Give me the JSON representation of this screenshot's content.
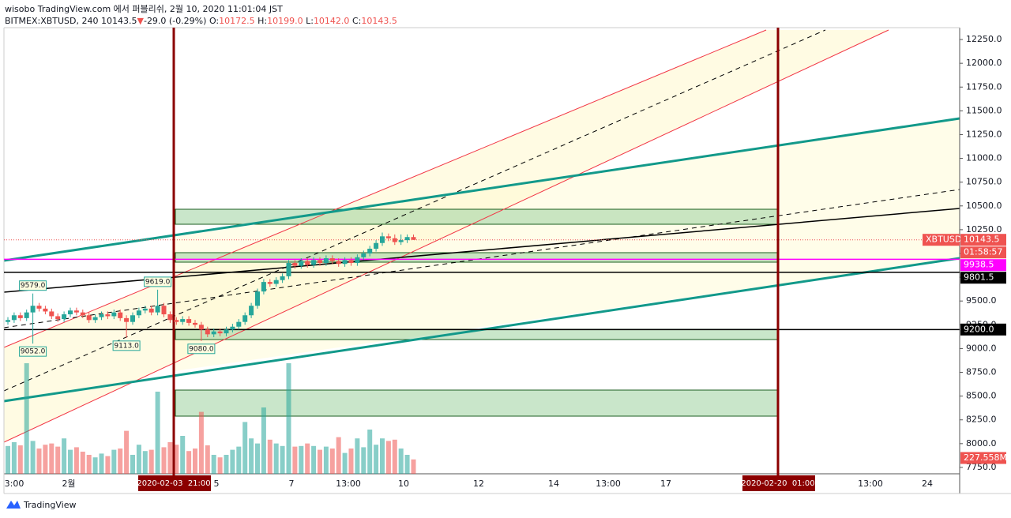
{
  "header": {
    "line1": "wisobo TradingView.com 에서 퍼블리쉬, 2월 10, 2020 11:01:04 JST",
    "symbol": "BITMEX:XBTUSD, 240",
    "last": "10143.5",
    "arrow": "▼",
    "change": "-29.0 (-0.29%)",
    "ohlc": [
      {
        "key": "O:",
        "value": "10172.5"
      },
      {
        "key": "H:",
        "value": "10199.0"
      },
      {
        "key": "L:",
        "value": "10142.0"
      },
      {
        "key": "C:",
        "value": "10143.5"
      }
    ]
  },
  "chart_data": {
    "type": "candlestick",
    "up_color": "#26a69a",
    "down_color": "#ef5350",
    "ylim": [
      7683,
      12375
    ],
    "yticks": [
      {
        "value": 7750,
        "label": "7750.0"
      },
      {
        "value": 8000,
        "label": "8000.0"
      },
      {
        "value": 8250,
        "label": "8250.0"
      },
      {
        "value": 8500,
        "label": "8500.0"
      },
      {
        "value": 8750,
        "label": "8750.0"
      },
      {
        "value": 9000,
        "label": "9000.0"
      },
      {
        "value": 9250,
        "label": "9250.0"
      },
      {
        "value": 9500,
        "label": "9500.0"
      },
      {
        "value": 9750,
        "label": "9750.0"
      },
      {
        "value": 10000,
        "label": "10000.0"
      },
      {
        "value": 10250,
        "label": "10250.0"
      },
      {
        "value": 10500,
        "label": "10500.0"
      },
      {
        "value": 10750,
        "label": "10750.0"
      },
      {
        "value": 11000,
        "label": "11000.0"
      },
      {
        "value": 11250,
        "label": "11250.0"
      },
      {
        "value": 11500,
        "label": "11500.0"
      },
      {
        "value": 11750,
        "label": "11750.0"
      },
      {
        "value": 12000,
        "label": "12000.0"
      },
      {
        "value": 12250,
        "label": "12250.0"
      }
    ],
    "open": [
      9280,
      9300,
      9350,
      9320,
      9380,
      9450,
      9420,
      9390,
      9340,
      9310,
      9360,
      9400,
      9380,
      9350,
      9300,
      9330,
      9360,
      9340,
      9380,
      9320,
      9280,
      9350,
      9400,
      9420,
      9380,
      9450,
      9360,
      9300,
      9280,
      9310,
      9270,
      9250,
      9200,
      9150,
      9180,
      9160,
      9200,
      9230,
      9280,
      9350,
      9450,
      9600,
      9700,
      9680,
      9720,
      9760,
      9900,
      9870,
      9920,
      9880,
      9930,
      9900,
      9950,
      9920,
      9890,
      9930,
      9900,
      9960,
      10000,
      10050,
      10110,
      10180,
      10160,
      10120,
      10140,
      10172.5
    ],
    "high": [
      9330,
      9380,
      9380,
      9410,
      9579,
      9480,
      9450,
      9420,
      9370,
      9390,
      9430,
      9430,
      9410,
      9380,
      9360,
      9390,
      9390,
      9410,
      9410,
      9350,
      9380,
      9430,
      9450,
      9450,
      9619,
      9480,
      9390,
      9330,
      9340,
      9340,
      9300,
      9280,
      9230,
      9210,
      9210,
      9230,
      9260,
      9310,
      9380,
      9480,
      9630,
      9730,
      9730,
      9750,
      9790,
      9930,
      9930,
      9950,
      9950,
      9960,
      9960,
      9980,
      9980,
      9950,
      9960,
      9960,
      9990,
      10030,
      10080,
      10140,
      10220,
      10210,
      10200,
      10200,
      10200,
      10199
    ],
    "low": [
      9250,
      9270,
      9290,
      9290,
      9052,
      9390,
      9360,
      9310,
      9280,
      9280,
      9330,
      9350,
      9320,
      9270,
      9270,
      9300,
      9310,
      9310,
      9290,
      9113,
      9250,
      9320,
      9370,
      9350,
      9350,
      9330,
      9270,
      9250,
      9250,
      9240,
      9220,
      9080,
      9120,
      9120,
      9130,
      9130,
      9170,
      9200,
      9250,
      9320,
      9420,
      9570,
      9650,
      9650,
      9690,
      9730,
      9840,
      9840,
      9850,
      9850,
      9870,
      9870,
      9890,
      9860,
      9860,
      9870,
      9870,
      9930,
      9970,
      10020,
      10080,
      10130,
      10090,
      10090,
      10110,
      10142
    ],
    "close": [
      9300,
      9350,
      9320,
      9380,
      9450,
      9420,
      9390,
      9340,
      9310,
      9360,
      9400,
      9380,
      9350,
      9300,
      9330,
      9360,
      9340,
      9380,
      9320,
      9280,
      9350,
      9400,
      9420,
      9380,
      9450,
      9360,
      9300,
      9280,
      9310,
      9270,
      9250,
      9200,
      9150,
      9180,
      9160,
      9200,
      9230,
      9280,
      9350,
      9450,
      9600,
      9700,
      9680,
      9720,
      9760,
      9900,
      9870,
      9920,
      9880,
      9930,
      9900,
      9950,
      9920,
      9890,
      9930,
      9900,
      9960,
      10000,
      10050,
      10110,
      10180,
      10160,
      10120,
      10140,
      10172.5,
      10143.5
    ],
    "volume": [
      440,
      500,
      450,
      1750,
      520,
      400,
      460,
      480,
      430,
      560,
      380,
      420,
      350,
      300,
      260,
      320,
      280,
      380,
      400,
      680,
      300,
      460,
      360,
      380,
      1300,
      420,
      500,
      460,
      600,
      360,
      400,
      980,
      450,
      300,
      260,
      300,
      380,
      430,
      820,
      560,
      480,
      1050,
      540,
      480,
      440,
      1750,
      430,
      440,
      480,
      440,
      380,
      430,
      400,
      580,
      330,
      400,
      560,
      420,
      700,
      460,
      560,
      520,
      540,
      400,
      300,
      227.558
    ],
    "volume_last_label": "227.558M",
    "extreme_labels": [
      {
        "value": 9579,
        "label": "9579.0"
      },
      {
        "value": 9052,
        "label": "9052.0"
      },
      {
        "value": 9619,
        "label": "9619.0"
      },
      {
        "value": 9113,
        "label": "9113.0"
      },
      {
        "value": 9080,
        "label": "9080.0"
      }
    ],
    "last_price": {
      "symbol": "XBTUSD",
      "value": 10143.5,
      "label": "10143.5",
      "countdown": "01:58:57"
    },
    "price_lines": [
      {
        "value": 9938.5,
        "label": "9938.5",
        "color": "#ff00ff"
      },
      {
        "value": 9801.5,
        "label": "9801.5",
        "color": "#000000"
      },
      {
        "value": 9200,
        "label": "9200.0",
        "color": "#000000"
      }
    ],
    "time_labels": [
      "3:00",
      "2월",
      "5",
      "7",
      "13:00",
      "10",
      "12",
      "14",
      "13:00",
      "17",
      "13:00",
      "24"
    ],
    "date_markers": [
      "2020-02-03  21:00",
      "2020-02-20  01:00"
    ],
    "brand": "TradingView"
  }
}
